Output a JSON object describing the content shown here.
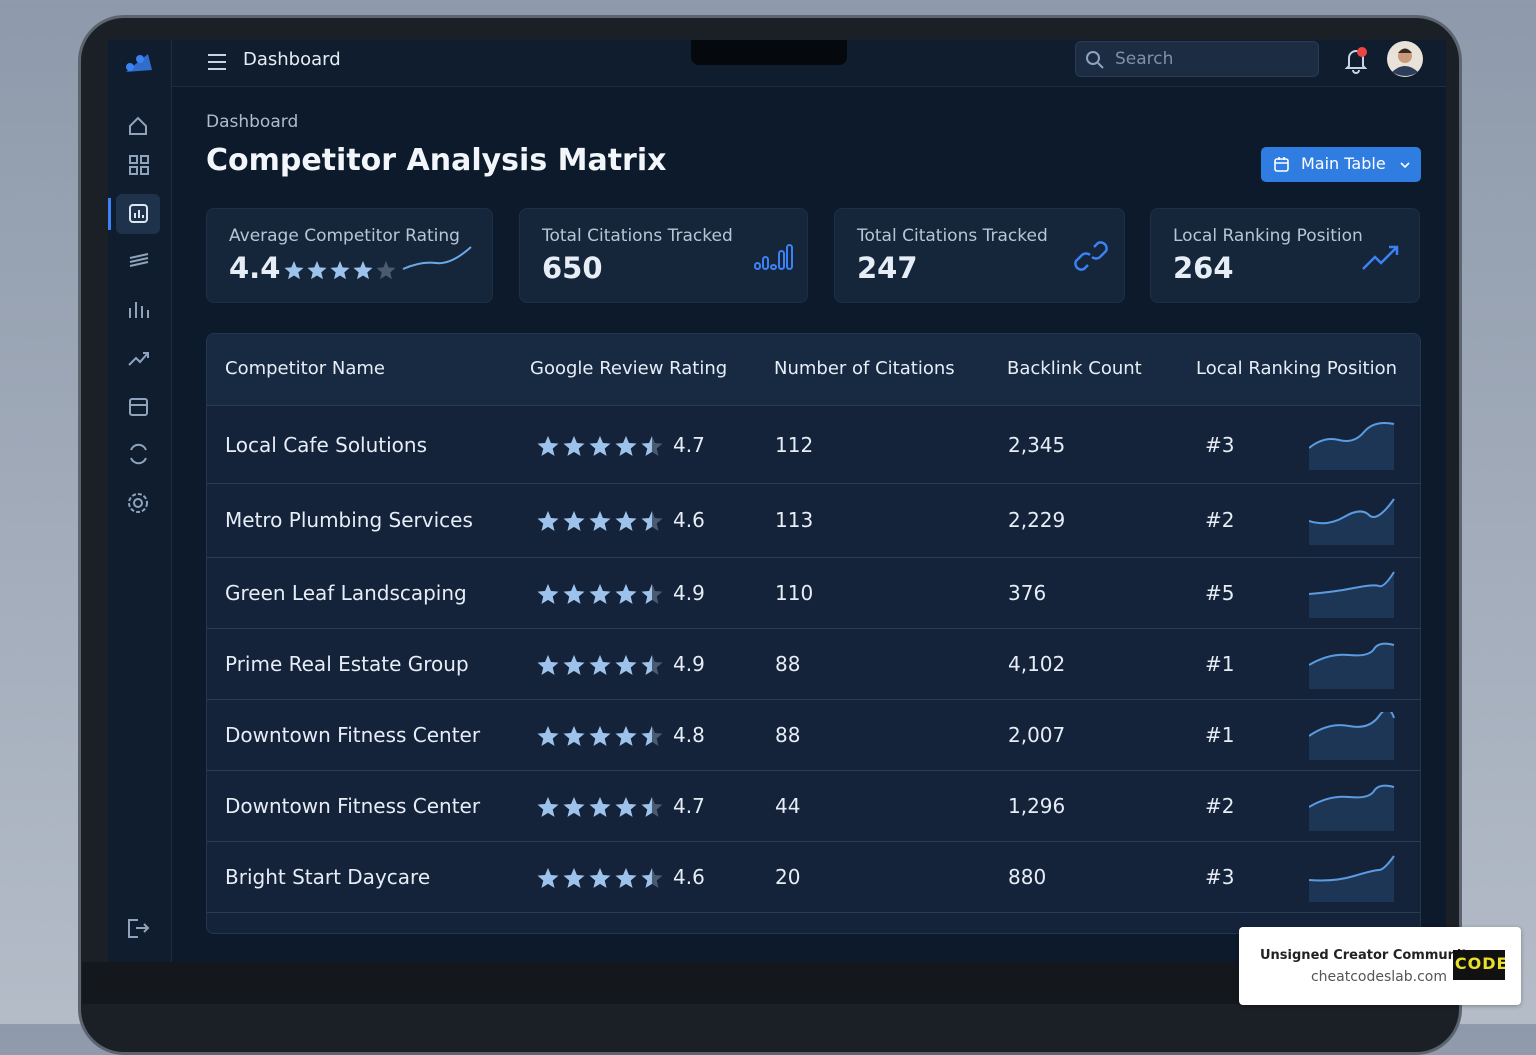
{
  "header": {
    "title": "Dashboard",
    "search_placeholder": "Search"
  },
  "page": {
    "breadcrumb": "Dashboard",
    "title": "Competitor Analysis Matrix",
    "button": "Main Table"
  },
  "stat_cards": [
    {
      "label": "Average Competitor Rating",
      "value": "4.4"
    },
    {
      "label": "Total Citations Tracked",
      "value": "650"
    },
    {
      "label": "Total Citations Tracked",
      "value": "247"
    },
    {
      "label": "Local Ranking Position",
      "value": "264"
    }
  ],
  "table": {
    "headers": [
      "Competitor Name",
      "Google Review Rating",
      "Number of Citations",
      "Backlink Count",
      "Local Ranking Position"
    ],
    "rows": [
      [
        "Local Cafe Solutions",
        "4.7",
        "112",
        "2,345",
        "#3"
      ],
      [
        "Metro Plumbing Services",
        "4.6",
        "113",
        "2,229",
        "#2"
      ],
      [
        "Green Leaf Landscaping",
        "4.9",
        "110",
        "376",
        "#5"
      ],
      [
        "Prime Real Estate Group",
        "4.9",
        "88",
        "4,102",
        "#1"
      ],
      [
        "Downtown Fitness Center",
        "4.8",
        "88",
        "2,007",
        "#1"
      ],
      [
        "Downtown Fitness Center",
        "4.7",
        "44",
        "1,296",
        "#2"
      ],
      [
        "Bright Start Daycare",
        "4.6",
        "20",
        "880",
        "#3"
      ]
    ]
  },
  "watermark": {
    "title": "Unsigned Creator Community",
    "url": "cheatcodeslab.com"
  }
}
